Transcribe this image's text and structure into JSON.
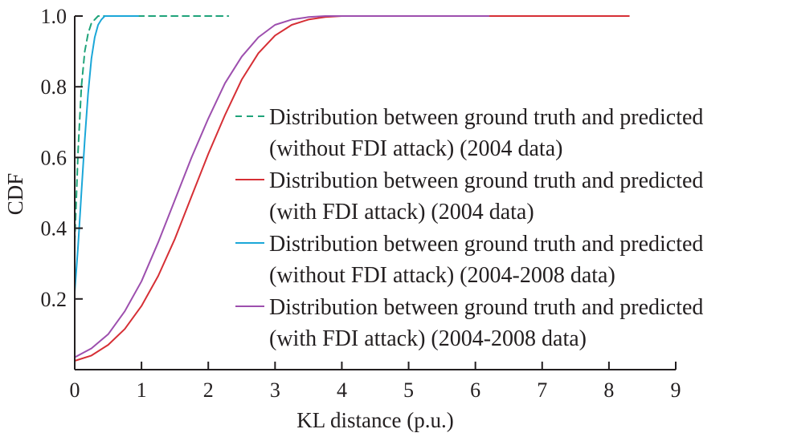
{
  "chart_data": {
    "type": "line",
    "title": "",
    "xlabel": "KL distance (p.u.)",
    "ylabel": "CDF",
    "xlim": [
      0,
      9
    ],
    "ylim": [
      0,
      1.0
    ],
    "x_ticks": [
      "0",
      "1",
      "2",
      "3",
      "4",
      "5",
      "6",
      "7",
      "8",
      "9"
    ],
    "y_ticks": [
      "0.2",
      "0.4",
      "0.6",
      "0.8",
      "1.0"
    ],
    "grid": false,
    "legend_position": "center-right",
    "series": [
      {
        "name": "Distribution between ground truth and predicted (without FDI attack) (2004 data)",
        "legend_lines": [
          "Distribution between ground truth and predicted",
          "(without FDI attack) (2004 data)"
        ],
        "color": "#1fa37a",
        "dash": "dashed",
        "points": [
          [
            0.0,
            0.36
          ],
          [
            0.05,
            0.62
          ],
          [
            0.1,
            0.8
          ],
          [
            0.15,
            0.9
          ],
          [
            0.2,
            0.95
          ],
          [
            0.25,
            0.98
          ],
          [
            0.3,
            0.99
          ],
          [
            0.35,
            1.0
          ],
          [
            0.5,
            1.0
          ],
          [
            1.0,
            1.0
          ],
          [
            1.5,
            1.0
          ],
          [
            2.3,
            1.0
          ]
        ]
      },
      {
        "name": "Distribution between ground truth and predicted (with FDI attack) (2004 data)",
        "legend_lines": [
          "Distribution between ground truth and predicted",
          "(with FDI attack) (2004 data)"
        ],
        "color": "#d62f35",
        "dash": "solid",
        "points": [
          [
            0.0,
            0.025
          ],
          [
            0.25,
            0.04
          ],
          [
            0.5,
            0.07
          ],
          [
            0.75,
            0.115
          ],
          [
            1.0,
            0.18
          ],
          [
            1.25,
            0.265
          ],
          [
            1.5,
            0.37
          ],
          [
            1.75,
            0.49
          ],
          [
            2.0,
            0.61
          ],
          [
            2.25,
            0.72
          ],
          [
            2.5,
            0.82
          ],
          [
            2.75,
            0.895
          ],
          [
            3.0,
            0.945
          ],
          [
            3.25,
            0.975
          ],
          [
            3.5,
            0.99
          ],
          [
            3.75,
            0.997
          ],
          [
            4.0,
            1.0
          ],
          [
            5.0,
            1.0
          ],
          [
            6.0,
            1.0
          ],
          [
            7.0,
            1.0
          ],
          [
            8.3,
            1.0
          ]
        ]
      },
      {
        "name": "Distribution between ground truth and predicted (without FDI attack) (2004-2008 data)",
        "legend_lines": [
          "Distribution between ground truth and predicted",
          "(without FDI attack) (2004-2008 data)"
        ],
        "color": "#1ba7d8",
        "dash": "solid",
        "points": [
          [
            0.0,
            0.22
          ],
          [
            0.05,
            0.35
          ],
          [
            0.1,
            0.5
          ],
          [
            0.15,
            0.65
          ],
          [
            0.2,
            0.78
          ],
          [
            0.25,
            0.88
          ],
          [
            0.3,
            0.94
          ],
          [
            0.35,
            0.975
          ],
          [
            0.4,
            0.99
          ],
          [
            0.45,
            1.0
          ],
          [
            0.6,
            1.0
          ],
          [
            0.95,
            1.0
          ]
        ]
      },
      {
        "name": "Distribution between ground truth and predicted (with FDI attack) (2004-2008 data)",
        "legend_lines": [
          "Distribution between ground truth and predicted",
          "(with FDI attack) (2004-2008 data)"
        ],
        "color": "#9d4fae",
        "dash": "solid",
        "points": [
          [
            0.0,
            0.035
          ],
          [
            0.25,
            0.06
          ],
          [
            0.5,
            0.1
          ],
          [
            0.75,
            0.165
          ],
          [
            1.0,
            0.25
          ],
          [
            1.25,
            0.36
          ],
          [
            1.5,
            0.48
          ],
          [
            1.75,
            0.6
          ],
          [
            2.0,
            0.71
          ],
          [
            2.25,
            0.81
          ],
          [
            2.5,
            0.885
          ],
          [
            2.75,
            0.94
          ],
          [
            3.0,
            0.975
          ],
          [
            3.25,
            0.99
          ],
          [
            3.5,
            0.997
          ],
          [
            3.75,
            1.0
          ],
          [
            4.0,
            1.0
          ],
          [
            5.0,
            1.0
          ],
          [
            6.2,
            1.0
          ]
        ]
      }
    ]
  }
}
